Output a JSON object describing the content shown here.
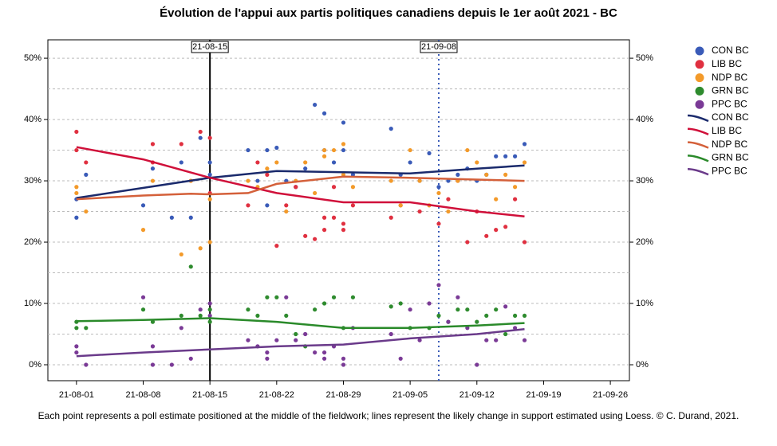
{
  "chart_data": {
    "type": "scatter",
    "title": "Évolution de l'appui aux partis politiques canadiens depuis le 1er août 2021 - BC",
    "footnote": "Each point represents a poll estimate positioned at the middle of the fieldwork; lines represent the likely change in support estimated using Loess.  © C. Durand, 2021.",
    "xlim": [
      "21-07-29",
      "21-09-28"
    ],
    "xticks": [
      "21-08-01",
      "21-08-08",
      "21-08-15",
      "21-08-22",
      "21-08-29",
      "21-09-05",
      "21-09-12",
      "21-09-19",
      "21-09-26"
    ],
    "ylim": [
      -2.6,
      53
    ],
    "yticks": [
      {
        "value": 0,
        "label": "0%"
      },
      {
        "value": 10,
        "label": "10%"
      },
      {
        "value": 20,
        "label": "20%"
      },
      {
        "value": 30,
        "label": "30%"
      },
      {
        "value": 40,
        "label": "40%"
      },
      {
        "value": 50,
        "label": "50%"
      }
    ],
    "minor_yticks": [
      5,
      15,
      25,
      35,
      45
    ],
    "grid": true,
    "vlines": [
      {
        "x": "21-08-15",
        "color": "#000000",
        "style": "solid"
      },
      {
        "x": "21-09-08",
        "color": "#3a5bb8",
        "style": "dotted"
      }
    ],
    "series": [
      {
        "name": "CON BC",
        "color": "#3a5bb8",
        "x": [
          "21-08-01",
          "21-08-01",
          "21-08-02",
          "21-08-08",
          "21-08-09",
          "21-08-11",
          "21-08-12",
          "21-08-13",
          "21-08-14",
          "21-08-15",
          "21-08-15",
          "21-08-19",
          "21-08-20",
          "21-08-21",
          "21-08-21",
          "21-08-22",
          "21-08-23",
          "21-08-24",
          "21-08-25",
          "21-08-26",
          "21-08-27",
          "21-08-27",
          "21-08-28",
          "21-08-29",
          "21-08-29",
          "21-08-30",
          "21-09-03",
          "21-09-04",
          "21-09-05",
          "21-09-06",
          "21-09-07",
          "21-09-08",
          "21-09-09",
          "21-09-10",
          "21-09-11",
          "21-09-12",
          "21-09-13",
          "21-09-14",
          "21-09-15",
          "21-09-16",
          "21-09-17"
        ],
        "values": [
          24,
          27,
          31,
          26,
          32,
          24,
          33,
          24,
          37,
          33,
          31,
          35,
          30,
          26,
          35,
          35.4,
          30,
          29,
          32,
          42.4,
          41,
          35,
          33,
          39.5,
          35,
          31,
          38.5,
          31,
          33,
          30,
          34.5,
          29,
          30,
          31,
          32,
          30,
          31,
          34,
          34,
          34,
          36
        ]
      },
      {
        "name": "LIB BC",
        "color": "#e03040",
        "x": [
          "21-08-01",
          "21-08-01",
          "21-08-02",
          "21-08-09",
          "21-08-09",
          "21-08-12",
          "21-08-13",
          "21-08-14",
          "21-08-15",
          "21-08-15",
          "21-08-19",
          "21-08-20",
          "21-08-21",
          "21-08-22",
          "21-08-23",
          "21-08-24",
          "21-08-25",
          "21-08-26",
          "21-08-27",
          "21-08-27",
          "21-08-28",
          "21-08-28",
          "21-08-29",
          "21-08-29",
          "21-08-30",
          "21-09-03",
          "21-09-04",
          "21-09-06",
          "21-09-08",
          "21-09-09",
          "21-09-10",
          "21-09-11",
          "21-09-12",
          "21-09-13",
          "21-09-14",
          "21-09-15",
          "21-09-16",
          "21-09-17"
        ],
        "values": [
          38,
          35,
          33,
          36,
          33,
          36,
          30,
          38,
          37,
          28,
          26,
          33,
          31,
          19.4,
          26,
          29,
          21,
          20.5,
          24,
          22,
          24,
          29,
          23,
          22,
          26,
          24,
          26,
          25,
          23,
          27,
          30,
          20,
          25,
          21,
          22,
          22.5,
          27,
          20
        ]
      },
      {
        "name": "NDP BC",
        "color": "#f39a2a",
        "x": [
          "21-08-01",
          "21-08-01",
          "21-08-02",
          "21-08-08",
          "21-08-09",
          "21-08-12",
          "21-08-13",
          "21-08-14",
          "21-08-15",
          "21-08-15",
          "21-08-19",
          "21-08-20",
          "21-08-21",
          "21-08-22",
          "21-08-23",
          "21-08-24",
          "21-08-25",
          "21-08-26",
          "21-08-27",
          "21-08-27",
          "21-08-28",
          "21-08-29",
          "21-08-29",
          "21-08-30",
          "21-09-03",
          "21-09-04",
          "21-09-05",
          "21-09-06",
          "21-09-07",
          "21-09-08",
          "21-09-09",
          "21-09-10",
          "21-09-11",
          "21-09-12",
          "21-09-13",
          "21-09-14",
          "21-09-15",
          "21-09-16",
          "21-09-17"
        ],
        "values": [
          29,
          28,
          25,
          22,
          30,
          18,
          30,
          19,
          20,
          27,
          30,
          29,
          32,
          33,
          25,
          30,
          33,
          28,
          35,
          34,
          35,
          36,
          31,
          29,
          30,
          26,
          35,
          30,
          26,
          28,
          25,
          30,
          35,
          33,
          31,
          27,
          31,
          29,
          33
        ]
      },
      {
        "name": "GRN BC",
        "color": "#2e8b2e",
        "x": [
          "21-08-01",
          "21-08-01",
          "21-08-02",
          "21-08-08",
          "21-08-09",
          "21-08-12",
          "21-08-13",
          "21-08-14",
          "21-08-15",
          "21-08-15",
          "21-08-19",
          "21-08-20",
          "21-08-21",
          "21-08-22",
          "21-08-23",
          "21-08-24",
          "21-08-25",
          "21-08-26",
          "21-08-27",
          "21-08-28",
          "21-08-29",
          "21-08-30",
          "21-09-03",
          "21-09-04",
          "21-09-05",
          "21-09-07",
          "21-09-08",
          "21-09-09",
          "21-09-10",
          "21-09-11",
          "21-09-12",
          "21-09-13",
          "21-09-14",
          "21-09-15",
          "21-09-16",
          "21-09-17"
        ],
        "values": [
          7,
          6,
          6,
          9,
          7,
          8,
          16,
          8,
          9,
          7,
          9,
          8,
          11,
          11,
          8,
          5,
          3,
          9,
          10,
          11,
          6,
          11,
          9.5,
          10,
          6,
          6,
          8,
          7,
          9,
          9,
          7,
          8,
          9,
          5,
          8,
          8
        ]
      },
      {
        "name": "PPC BC",
        "color": "#7a3a96",
        "x": [
          "21-08-01",
          "21-08-01",
          "21-08-02",
          "21-08-08",
          "21-08-09",
          "21-08-09",
          "21-08-11",
          "21-08-12",
          "21-08-13",
          "21-08-14",
          "21-08-15",
          "21-08-15",
          "21-08-19",
          "21-08-20",
          "21-08-21",
          "21-08-21",
          "21-08-22",
          "21-08-23",
          "21-08-24",
          "21-08-25",
          "21-08-26",
          "21-08-27",
          "21-08-27",
          "21-08-28",
          "21-08-29",
          "21-08-29",
          "21-08-30",
          "21-09-03",
          "21-09-04",
          "21-09-05",
          "21-09-06",
          "21-09-07",
          "21-09-08",
          "21-09-09",
          "21-09-10",
          "21-09-11",
          "21-09-12",
          "21-09-13",
          "21-09-14",
          "21-09-15",
          "21-09-16",
          "21-09-17"
        ],
        "values": [
          3,
          2,
          0,
          11,
          3,
          0,
          0,
          6,
          1,
          9,
          10,
          8,
          4,
          3,
          2,
          1,
          4,
          11,
          4,
          5,
          2,
          2,
          1,
          3,
          0,
          1,
          6,
          5,
          1,
          9,
          4,
          10,
          13,
          7,
          11,
          6,
          0,
          4,
          4,
          9.5,
          6,
          4
        ]
      }
    ],
    "trend_series": [
      {
        "name": "CON BC",
        "color": "#1a2a6c",
        "x": [
          "21-08-01",
          "21-08-15",
          "21-08-22",
          "21-08-29",
          "21-09-05",
          "21-09-12",
          "21-09-17"
        ],
        "values": [
          27.2,
          30.5,
          31.6,
          31.4,
          31.2,
          32,
          32.5
        ]
      },
      {
        "name": "LIB BC",
        "color": "#d0103a",
        "x": [
          "21-08-01",
          "21-08-08",
          "21-08-15",
          "21-08-22",
          "21-08-29",
          "21-09-05",
          "21-09-12",
          "21-09-17"
        ],
        "values": [
          35.5,
          33.5,
          30.5,
          28,
          26.5,
          26.5,
          25,
          24.2
        ]
      },
      {
        "name": "NDP BC",
        "color": "#d4603a",
        "x": [
          "21-08-01",
          "21-08-08",
          "21-08-13",
          "21-08-15",
          "21-08-19",
          "21-08-22",
          "21-08-29",
          "21-09-05",
          "21-09-12",
          "21-09-17"
        ],
        "values": [
          27,
          27.6,
          27.9,
          27.8,
          28,
          29.5,
          30.7,
          30.5,
          30.2,
          30
        ]
      },
      {
        "name": "GRN BC",
        "color": "#2a8a2a",
        "x": [
          "21-08-01",
          "21-08-08",
          "21-08-15",
          "21-08-22",
          "21-08-29",
          "21-09-05",
          "21-09-12",
          "21-09-17"
        ],
        "values": [
          7.1,
          7.3,
          7.6,
          7,
          6,
          6,
          6.4,
          6.8
        ]
      },
      {
        "name": "PPC BC",
        "color": "#6a3a8a",
        "x": [
          "21-08-01",
          "21-08-08",
          "21-08-15",
          "21-08-22",
          "21-08-29",
          "21-09-05",
          "21-09-12",
          "21-09-17"
        ],
        "values": [
          1.4,
          2,
          2.5,
          3,
          3.3,
          4.3,
          5,
          5.8
        ]
      }
    ]
  }
}
